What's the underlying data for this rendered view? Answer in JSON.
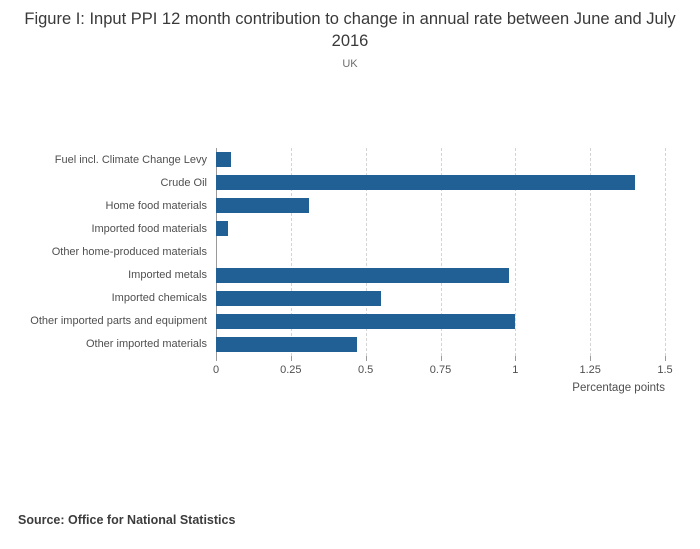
{
  "header": {
    "title": "Figure I: Input PPI 12 month contribution to change in annual rate between June and July 2016",
    "subtitle": "UK"
  },
  "chart_data": {
    "type": "bar",
    "orientation": "horizontal",
    "title": "Figure I: Input PPI 12 month contribution to change in annual rate between June and July 2016",
    "subtitle": "UK",
    "categories": [
      "Fuel incl. Climate Change Levy",
      "Crude Oil",
      "Home food materials",
      "Imported food materials",
      "Other home-produced materials",
      "Imported metals",
      "Imported chemicals",
      "Other imported parts and equipment",
      "Other imported materials"
    ],
    "values": [
      0.05,
      1.4,
      0.31,
      0.04,
      0,
      0.98,
      0.55,
      1.0,
      0.47
    ],
    "xlabel": "Percentage points",
    "ylabel": "",
    "xlim": [
      0,
      1.5
    ],
    "xticks": [
      {
        "value": 0,
        "label": "0"
      },
      {
        "value": 0.25,
        "label": "0.25"
      },
      {
        "value": 0.5,
        "label": "0.5"
      },
      {
        "value": 0.75,
        "label": "0.75"
      },
      {
        "value": 1,
        "label": "1"
      },
      {
        "value": 1.25,
        "label": "1.25"
      },
      {
        "value": 1.5,
        "label": "1.5"
      }
    ],
    "bar_color": "#206095",
    "grid": "vertical-dashed",
    "legend": "none"
  },
  "footer": {
    "source": "Source: Office for National Statistics"
  }
}
